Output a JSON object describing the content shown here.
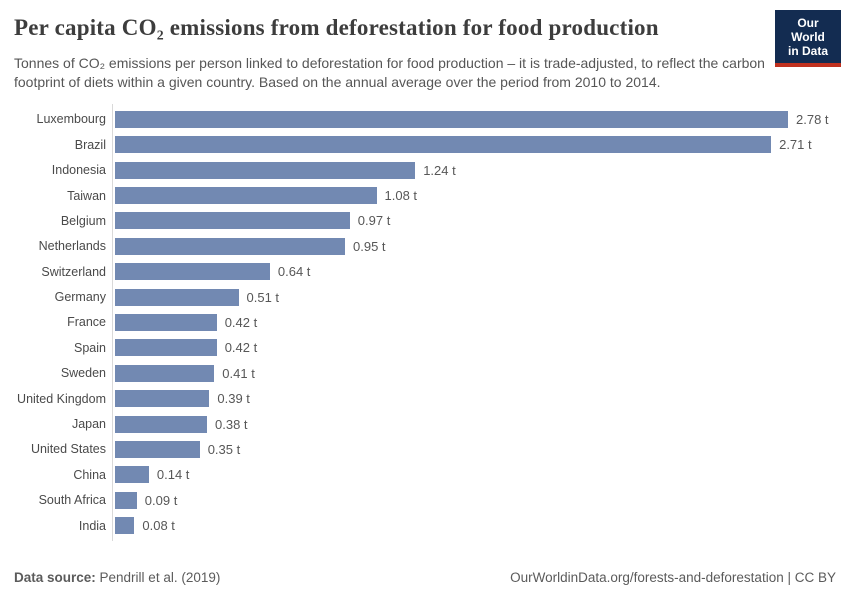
{
  "header": {
    "title": "Per capita CO₂ emissions from deforestation for food production",
    "subtitle": "Tonnes of CO₂ emissions per person linked to deforestation for food production – it is trade-adjusted, to reflect the carbon footprint of diets within a given country. Based on the annual average over the period from 2010 to 2014.",
    "logo": {
      "line1": "Our World",
      "line2": "in Data",
      "bg_color": "#132c51",
      "stripe_color": "#c0311f"
    }
  },
  "chart_data": {
    "type": "bar",
    "orientation": "horizontal",
    "title": "Per capita CO₂ emissions from deforestation for food production",
    "unit": "t",
    "categories": [
      "Luxembourg",
      "Brazil",
      "Indonesia",
      "Taiwan",
      "Belgium",
      "Netherlands",
      "Switzerland",
      "Germany",
      "France",
      "Spain",
      "Sweden",
      "United Kingdom",
      "Japan",
      "United States",
      "China",
      "South Africa",
      "India"
    ],
    "values": [
      2.78,
      2.71,
      1.24,
      1.08,
      0.97,
      0.95,
      0.64,
      0.51,
      0.42,
      0.42,
      0.41,
      0.39,
      0.38,
      0.35,
      0.14,
      0.09,
      0.08
    ],
    "value_labels": [
      "2.78 t",
      "2.71 t",
      "1.24 t",
      "1.08 t",
      "0.97 t",
      "0.95 t",
      "0.64 t",
      "0.51 t",
      "0.42 t",
      "0.42 t",
      "0.41 t",
      "0.39 t",
      "0.38 t",
      "0.35 t",
      "0.14 t",
      "0.09 t",
      "0.08 t"
    ],
    "xlim": [
      0,
      2.78
    ],
    "bar_color": "#7289b2",
    "grid": false,
    "legend": null
  },
  "footer": {
    "source_label": "Data source:",
    "source_text": " Pendrill et al. (2019)",
    "link_text": "OurWorldinData.org/forests-and-deforestation",
    "license_text": " | CC BY"
  }
}
